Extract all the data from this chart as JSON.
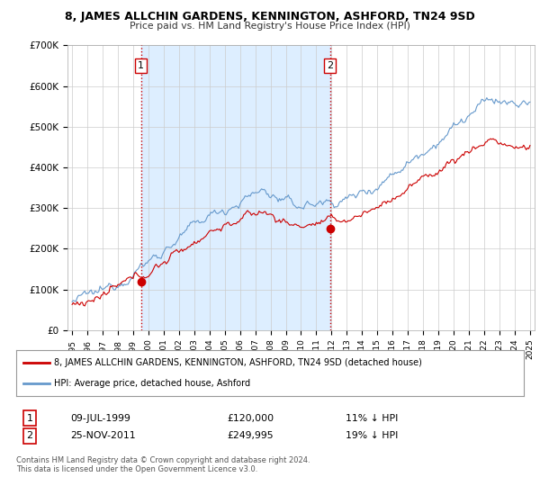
{
  "title": "8, JAMES ALLCHIN GARDENS, KENNINGTON, ASHFORD, TN24 9SD",
  "subtitle": "Price paid vs. HM Land Registry's House Price Index (HPI)",
  "legend_label_red": "8, JAMES ALLCHIN GARDENS, KENNINGTON, ASHFORD, TN24 9SD (detached house)",
  "legend_label_blue": "HPI: Average price, detached house, Ashford",
  "sale1_date": "09-JUL-1999",
  "sale1_price": "£120,000",
  "sale1_hpi": "11% ↓ HPI",
  "sale2_date": "25-NOV-2011",
  "sale2_price": "£249,995",
  "sale2_hpi": "19% ↓ HPI",
  "footnote": "Contains HM Land Registry data © Crown copyright and database right 2024.\nThis data is licensed under the Open Government Licence v3.0.",
  "ylim": [
    0,
    700000
  ],
  "yticks": [
    0,
    100000,
    200000,
    300000,
    400000,
    500000,
    600000,
    700000
  ],
  "ytick_labels": [
    "£0",
    "£100K",
    "£200K",
    "£300K",
    "£400K",
    "£500K",
    "£600K",
    "£700K"
  ],
  "background_color": "#ffffff",
  "plot_bg_color": "#ffffff",
  "grid_color": "#cccccc",
  "red_color": "#cc0000",
  "blue_color": "#6699cc",
  "shade_color": "#ddeeff",
  "sale1_year": 1999.52,
  "sale1_price_val": 120000,
  "sale2_year": 2011.9,
  "sale2_price_val": 249995,
  "vline1_year": 1999.52,
  "vline2_year": 2011.9,
  "xstart": 1995.0,
  "xend": 2025.0
}
